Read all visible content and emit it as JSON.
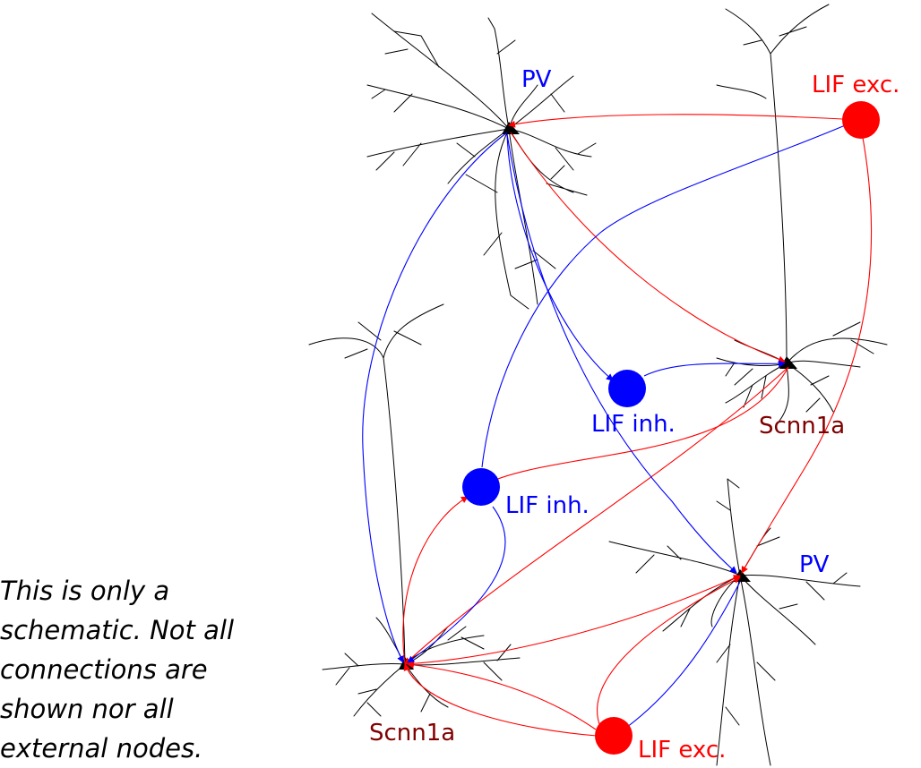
{
  "colors": {
    "exc": "#ff0000",
    "inh": "#0000ff",
    "scnn1a_label": "#800000",
    "neuron": "#000000"
  },
  "labels": {
    "pv_top": "PV",
    "lif_exc_top": "LIF exc.",
    "lif_inh_mid": "LIF inh.",
    "scnn1a_right": "Scnn1a",
    "lif_inh_left": "LIF inh.",
    "pv_bottom": "PV",
    "scnn1a_left": "Scnn1a",
    "lif_exc_bottom": "LIF exc."
  },
  "note_lines": [
    "This is only a",
    "schematic. Not all",
    "connections are",
    "shown nor all",
    "external nodes."
  ]
}
